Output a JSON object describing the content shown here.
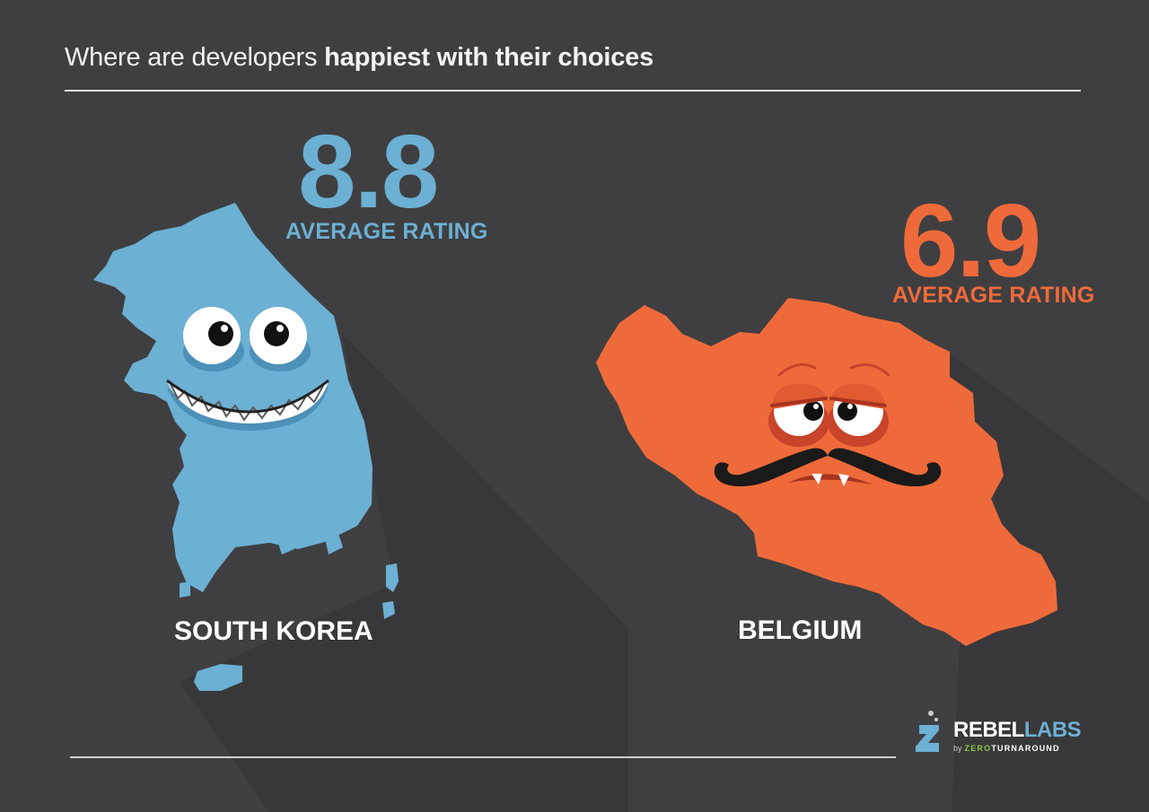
{
  "title": {
    "normal": "Where are developers ",
    "bold": "happiest with their choices"
  },
  "countries": [
    {
      "name": "SOUTH KOREA",
      "rating": "8.8",
      "rating_label": "AVERAGE RATING",
      "color": "#6cb0d3"
    },
    {
      "name": "BELGIUM",
      "rating": "6.9",
      "rating_label": "AVERAGE RATING",
      "color": "#ef6a3a"
    }
  ],
  "logo": {
    "rebel": "REBEL",
    "labs": "LABS",
    "by": "by",
    "zero": "ZERO",
    "turnaround": "TURNAROUND",
    "icon": "flask-icon"
  },
  "colors": {
    "background": "#3f3f41",
    "korea": "#6cb0d3",
    "belgium": "#ef6a3a",
    "logo_accent": "#8cc63f"
  }
}
